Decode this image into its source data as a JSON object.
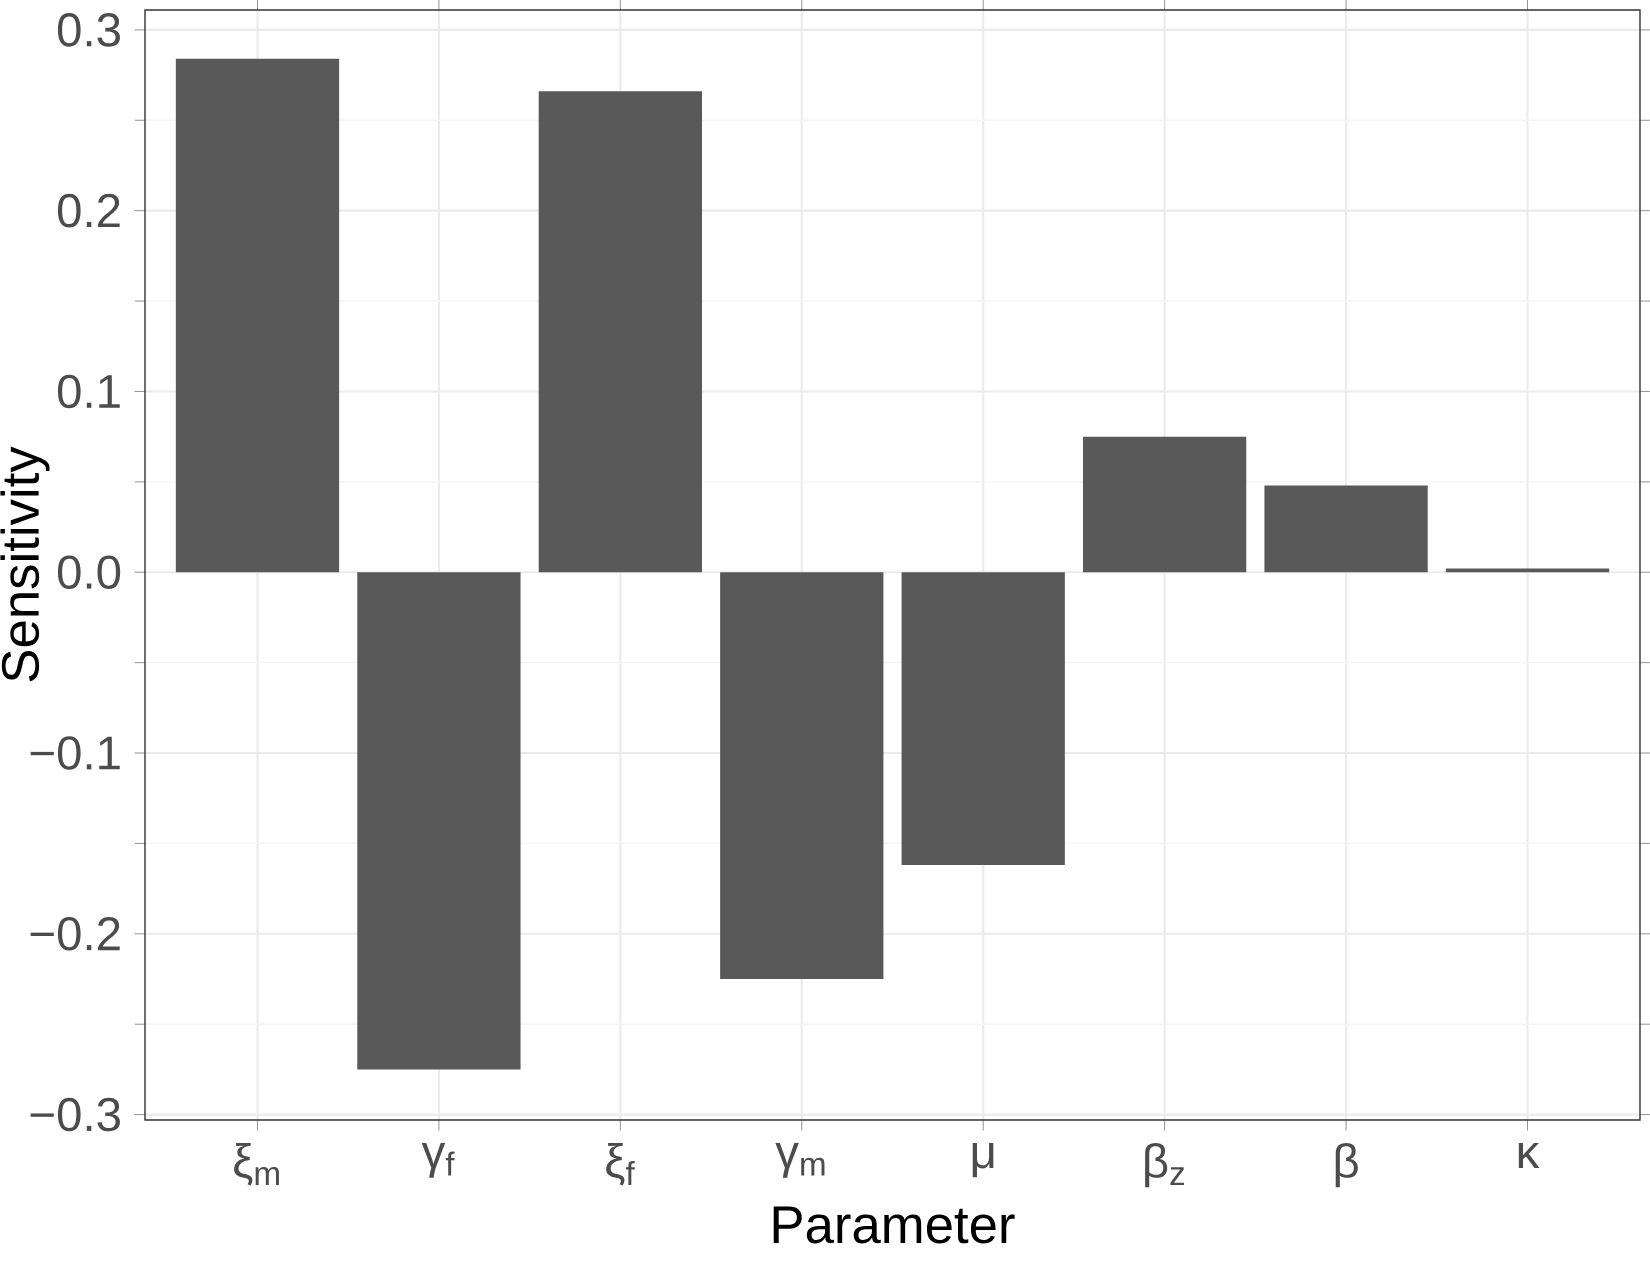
{
  "chart_data": {
    "type": "bar",
    "xlabel": "Parameter",
    "ylabel": "Sensitivity",
    "categories": [
      "ξ$_{m}$",
      "γ$_{f}$",
      "ξ$_{f}$",
      "γ$_{m}$",
      "μ",
      "β$_{z}$",
      "β",
      "κ"
    ],
    "values": [
      0.284,
      -0.275,
      0.266,
      -0.225,
      -0.162,
      0.075,
      0.048,
      0.002
    ],
    "color": "#595959",
    "ylim": [
      -0.303,
      0.311
    ],
    "yticks": [
      {
        "value": -0.3,
        "label": "−0.3"
      },
      {
        "value": -0.2,
        "label": "−0.2"
      },
      {
        "value": -0.1,
        "label": "−0.1"
      },
      {
        "value": 0.0,
        "label": "0.0"
      },
      {
        "value": 0.1,
        "label": "0.1"
      },
      {
        "value": 0.2,
        "label": "0.2"
      },
      {
        "value": 0.3,
        "label": "0.3"
      }
    ],
    "grid": true
  }
}
